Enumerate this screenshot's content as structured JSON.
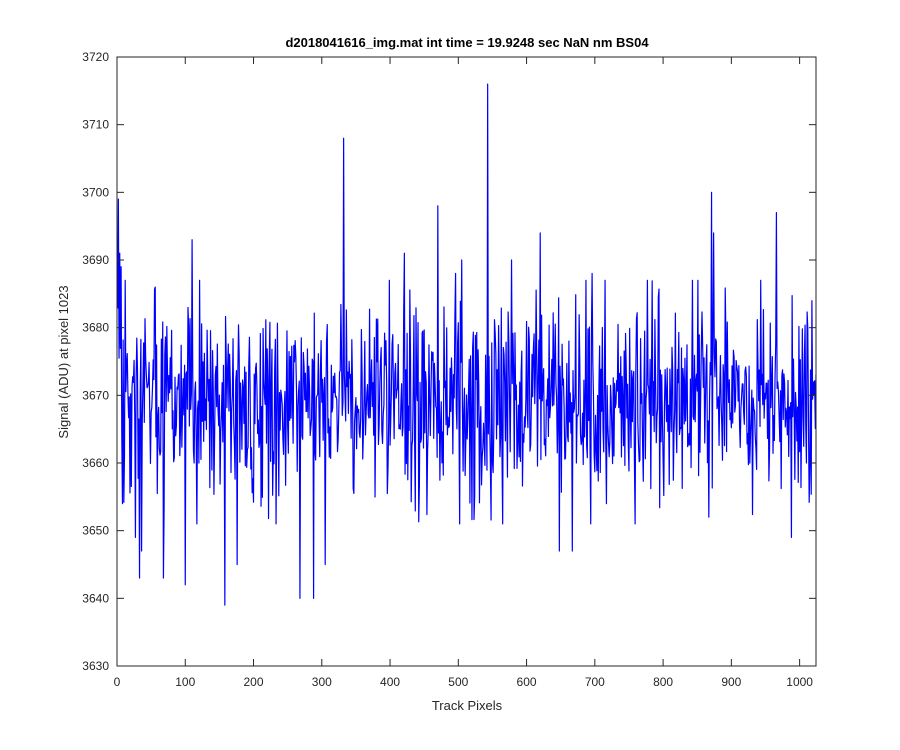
{
  "chart_data": {
    "type": "line",
    "title": "d2018041616_img.mat int time = 19.9248 sec  NaN nm BS04",
    "xlabel": "Track Pixels",
    "ylabel": "Signal (ADU) at pixel 1023",
    "xlim": [
      0,
      1024
    ],
    "ylim": [
      3630,
      3720
    ],
    "xticks": [
      0,
      100,
      200,
      300,
      400,
      500,
      600,
      700,
      800,
      900,
      1000
    ],
    "yticks": [
      3630,
      3640,
      3650,
      3660,
      3670,
      3680,
      3690,
      3700,
      3710,
      3720
    ],
    "grid": false,
    "series": [
      {
        "color": "#0000ff",
        "x_start": 1,
        "x_step": 1,
        "noise": {
          "mean": 3669.5,
          "std": 7.5,
          "seed": 20180416
        },
        "peaks": [
          {
            "x": 2,
            "y": 3699
          },
          {
            "x": 4,
            "y": 3691
          },
          {
            "x": 6,
            "y": 3689
          },
          {
            "x": 8,
            "y": 3654
          },
          {
            "x": 12,
            "y": 3687
          },
          {
            "x": 27,
            "y": 3649
          },
          {
            "x": 33,
            "y": 3643
          },
          {
            "x": 36,
            "y": 3647
          },
          {
            "x": 56,
            "y": 3686
          },
          {
            "x": 68,
            "y": 3643
          },
          {
            "x": 100,
            "y": 3642
          },
          {
            "x": 110,
            "y": 3693
          },
          {
            "x": 158,
            "y": 3639
          },
          {
            "x": 176,
            "y": 3645
          },
          {
            "x": 268,
            "y": 3640
          },
          {
            "x": 288,
            "y": 3640
          },
          {
            "x": 305,
            "y": 3645
          },
          {
            "x": 332,
            "y": 3708
          },
          {
            "x": 421,
            "y": 3691
          },
          {
            "x": 470,
            "y": 3698
          },
          {
            "x": 496,
            "y": 3688
          },
          {
            "x": 505,
            "y": 3690
          },
          {
            "x": 543,
            "y": 3716
          },
          {
            "x": 578,
            "y": 3690
          },
          {
            "x": 620,
            "y": 3694
          },
          {
            "x": 648,
            "y": 3647
          },
          {
            "x": 667,
            "y": 3647
          },
          {
            "x": 696,
            "y": 3688
          },
          {
            "x": 777,
            "y": 3687
          },
          {
            "x": 851,
            "y": 3687
          },
          {
            "x": 867,
            "y": 3652
          },
          {
            "x": 871,
            "y": 3700
          },
          {
            "x": 874,
            "y": 3694
          },
          {
            "x": 966,
            "y": 3697
          },
          {
            "x": 988,
            "y": 3649
          },
          {
            "x": 1010,
            "y": 3660
          }
        ]
      }
    ]
  }
}
